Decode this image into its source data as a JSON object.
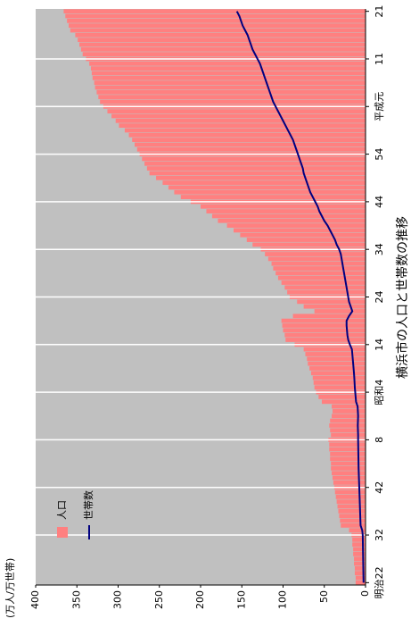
{
  "chart_data": {
    "type": "bar",
    "title": "横浜市の人口と世帯数の推移",
    "y_label": "(万人/万世帯)",
    "categories": [
      "明治22",
      null,
      null,
      null,
      null,
      null,
      null,
      null,
      null,
      null,
      "32",
      null,
      null,
      null,
      null,
      null,
      null,
      null,
      null,
      null,
      "42",
      null,
      null,
      null,
      null,
      null,
      null,
      null,
      null,
      null,
      "8",
      null,
      null,
      null,
      null,
      null,
      null,
      null,
      null,
      null,
      "昭和4",
      null,
      null,
      null,
      null,
      null,
      null,
      null,
      null,
      null,
      "14",
      null,
      null,
      null,
      null,
      null,
      null,
      null,
      null,
      null,
      "24",
      null,
      null,
      null,
      null,
      null,
      null,
      null,
      null,
      null,
      "34",
      null,
      null,
      null,
      null,
      null,
      null,
      null,
      null,
      null,
      "44",
      null,
      null,
      null,
      null,
      null,
      null,
      null,
      null,
      null,
      "54",
      null,
      null,
      null,
      null,
      null,
      null,
      null,
      null,
      null,
      "平成元",
      null,
      null,
      null,
      null,
      null,
      null,
      null,
      null,
      null,
      "11",
      null,
      null,
      null,
      null,
      null,
      null,
      null,
      null,
      null,
      "21"
    ],
    "series": [
      {
        "name": "人口",
        "type": "bar",
        "color": "#ff8080",
        "values": [
          12,
          12,
          13,
          13,
          14,
          14,
          15,
          15,
          16,
          16,
          17,
          20,
          30,
          31,
          32,
          33,
          34,
          35,
          36,
          37,
          38,
          39,
          40,
          41,
          42,
          42,
          43,
          43,
          44,
          44,
          45,
          42,
          43,
          44,
          43,
          41,
          40,
          41,
          53,
          57,
          60,
          62,
          63,
          64,
          66,
          68,
          70,
          71,
          73,
          75,
          86,
          97,
          98,
          100,
          101,
          102,
          88,
          62,
          75,
          83,
          92,
          95,
          98,
          102,
          106,
          109,
          112,
          114,
          118,
          122,
          127,
          137,
          144,
          152,
          160,
          168,
          179,
          186,
          193,
          200,
          212,
          224,
          232,
          239,
          246,
          254,
          262,
          265,
          268,
          271,
          274,
          277,
          280,
          283,
          287,
          292,
          299,
          303,
          308,
          313,
          318,
          322,
          324,
          326,
          328,
          329,
          331,
          332,
          333,
          335,
          339,
          343,
          345,
          347,
          349,
          352,
          358,
          360,
          362,
          364,
          366
        ]
      },
      {
        "name": "世帯数",
        "type": "line",
        "color": "#000080",
        "values": [
          2.4,
          2.5,
          2.6,
          2.7,
          2.8,
          2.9,
          3.0,
          3.1,
          3.2,
          3.3,
          3.4,
          4,
          6,
          6.2,
          6.4,
          6.6,
          6.8,
          7,
          7.2,
          7.4,
          7.6,
          7.8,
          8,
          8.2,
          8.4,
          8.5,
          8.6,
          8.7,
          8.8,
          8.9,
          9,
          9,
          9.2,
          9.4,
          9.2,
          9,
          9.3,
          9.6,
          11.5,
          12,
          12.5,
          13,
          13.3,
          13.6,
          14,
          14.5,
          15,
          15.5,
          16,
          16.5,
          19,
          21,
          22,
          22.5,
          23,
          23,
          20,
          16,
          18,
          20,
          21,
          22,
          23,
          24,
          25,
          26,
          27,
          28,
          29,
          30,
          32,
          35,
          37,
          40,
          43,
          46,
          50,
          53,
          56,
          58,
          61,
          64,
          67,
          69,
          71,
          73,
          75,
          76,
          78,
          80,
          82,
          84,
          86,
          88,
          91,
          94,
          97,
          100,
          103,
          106,
          109,
          112,
          114,
          116,
          118,
          120,
          122,
          124,
          126,
          128,
          131,
          134,
          137,
          139,
          141,
          143,
          146,
          149,
          151,
          153,
          156
        ]
      }
    ],
    "ylim": [
      0,
      400
    ],
    "yticks": [
      0,
      50,
      100,
      150,
      200,
      250,
      300,
      350,
      400
    ],
    "plot_background": "#c0c0c0",
    "grid_color": "#ffffff",
    "x_grid": true
  }
}
